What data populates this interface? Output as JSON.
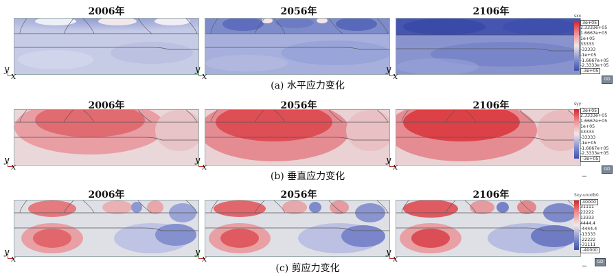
{
  "years": [
    "2006年",
    "2056年",
    "2106年"
  ],
  "rows": [
    {
      "key": "sxx",
      "caption": "(a) 水平应力变化",
      "legend_title": "sxx",
      "legend_ticks": [
        "3e+05",
        "2.3333e+05",
        "1.6667e+05",
        "1e+05",
        "33333",
        "-33333",
        "-1e+05",
        "-1.6667e+05",
        "-2.3333e+05",
        "-3e+05"
      ],
      "legend_colors": [
        "#d8232a",
        "#e25c5f",
        "#ec9396",
        "#f2c3c3",
        "#f3e6e6",
        "#e3e5f2",
        "#b8bee2",
        "#8c96d0",
        "#5b69bb",
        "#3d4fad"
      ]
    },
    {
      "key": "syy",
      "caption": "(b) 垂直应力变化",
      "legend_title": "syy",
      "legend_ticks": [
        "3e+05",
        "2.3333e+05",
        "1.6667e+05",
        "1e+05",
        "33333",
        "-33333",
        "-1e+05",
        "-1.6667e+05",
        "-2.3333e+05",
        "-3e+05"
      ],
      "legend_colors": [
        "#d8232a",
        "#e25c5f",
        "#ec9396",
        "#f2c3c3",
        "#f3e6e6",
        "#e3e5f2",
        "#b8bee2",
        "#8c96d0",
        "#5b69bb",
        "#3d4fad"
      ]
    },
    {
      "key": "sxy",
      "caption": "(c) 剪应力变化",
      "legend_title": "Sxy-unodb0",
      "legend_ticks": [
        "40000",
        "31111",
        "22222",
        "13333",
        "4444.4",
        "-4444.4",
        "-13333",
        "-22222",
        "-31111",
        "-40000"
      ],
      "legend_colors": [
        "#d8232a",
        "#e25c5f",
        "#ec9396",
        "#f2c3c3",
        "#f3e6e6",
        "#e3e5f2",
        "#b8bee2",
        "#8c96d0",
        "#5b69bb",
        "#3d4fad"
      ]
    }
  ],
  "axis": {
    "y": "y",
    "x": "x"
  },
  "gd_label": "GD"
}
